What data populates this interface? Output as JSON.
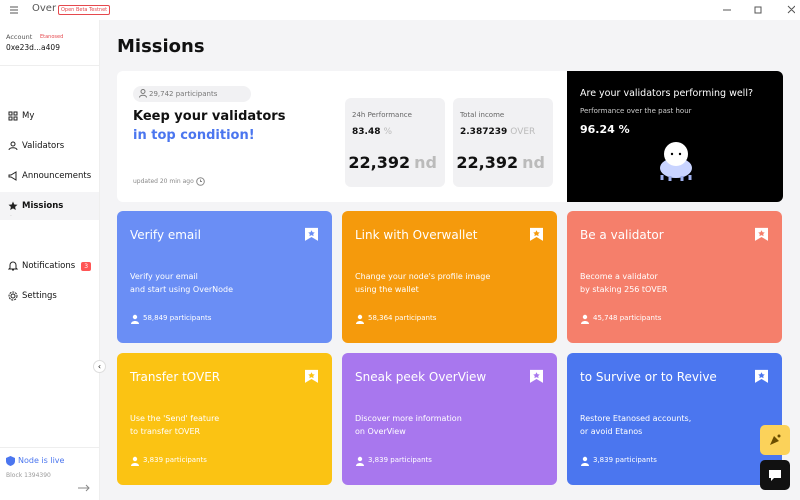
{
  "app": {
    "name": "Over",
    "badge": "Open Beta Testnet"
  },
  "account": {
    "label": "Account",
    "badge": "Etanosed",
    "address": "0xe23d...a409"
  },
  "nav": [
    {
      "label": "My"
    },
    {
      "label": "Validators"
    },
    {
      "label": "Announcements"
    },
    {
      "label": "Missions"
    },
    {
      "label": "Notifications",
      "badge": "3"
    },
    {
      "label": "Settings"
    }
  ],
  "status": {
    "label": "Node is live",
    "block": "Block 1394390"
  },
  "page": {
    "title": "Missions"
  },
  "hero": {
    "participants": "29,742 participants",
    "title_line1": "Keep your validators",
    "title_line2": "in top condition!",
    "updated": "updated 20 min ago",
    "stats": [
      {
        "label": "24h Performance",
        "value": "83.48",
        "unit": "%",
        "big": "22,392",
        "big_unit": "nd"
      },
      {
        "label": "Total income",
        "value": "2.387239",
        "unit": "OVER",
        "big": "22,392",
        "big_unit": "nd"
      }
    ]
  },
  "promo": {
    "title": "Are your validators performing well?",
    "subtitle": "Performance over the past hour",
    "value": "96.24 %"
  },
  "missions": [
    {
      "title": "Verify email",
      "lines": [
        "Verify your email",
        "and start using OverNode"
      ],
      "participants": "58,849 participants"
    },
    {
      "title": "Link with Overwallet",
      "lines": [
        "Change your node's profile image",
        "using the wallet"
      ],
      "participants": "58,364 participants"
    },
    {
      "title": "Be a validator",
      "lines": [
        "Become a validator",
        "by staking 256 tOVER"
      ],
      "participants": "45,748 participants"
    },
    {
      "title": "Transfer tOVER",
      "lines": [
        "Use the 'Send' feature",
        "to transfer tOVER"
      ],
      "participants": "3,839 participants"
    },
    {
      "title": "Sneak peek OverView",
      "lines": [
        "Discover more information",
        "on OverView"
      ],
      "participants": "3,839 participants"
    },
    {
      "title": "to Survive or to Revive",
      "lines": [
        "Restore Etanosed accounts,",
        "or avoid Etanos"
      ],
      "participants": "3,839 participants"
    }
  ]
}
